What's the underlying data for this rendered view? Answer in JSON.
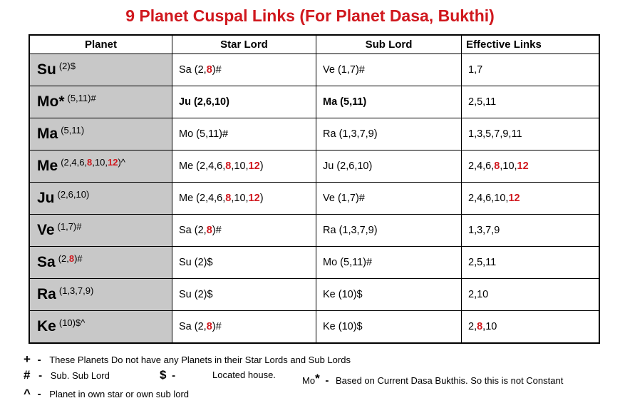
{
  "title": "9 Planet Cuspal Links (For Planet Dasa, Bukthi)",
  "headers": [
    "Planet",
    "Star Lord",
    "Sub Lord",
    "Effective Links"
  ],
  "rows": [
    {
      "planet": "Su",
      "planet_houses": "(2)$",
      "star_lord": [
        {
          "t": "Sa (2,"
        },
        {
          "t": "8",
          "c": "r"
        },
        {
          "t": ")#"
        }
      ],
      "sub_lord": [
        {
          "t": "Ve (1,7)#"
        }
      ],
      "links": [
        {
          "t": "1,7"
        }
      ]
    },
    {
      "planet": "Mo*",
      "planet_houses": "(5,11)#",
      "star_lord": [
        {
          "t": "Ju (2,6,10)",
          "c": "bold"
        }
      ],
      "sub_lord": [
        {
          "t": "Ma (5,11)",
          "c": "bold"
        }
      ],
      "links": [
        {
          "t": "2,5,11"
        }
      ]
    },
    {
      "planet": "Ma",
      "planet_houses": "(5,11)",
      "star_lord": [
        {
          "t": "Mo (5,11)#"
        }
      ],
      "sub_lord": [
        {
          "t": "Ra (1,3,7,9)"
        }
      ],
      "links": [
        {
          "t": "1,3,5,7,9,11"
        }
      ]
    },
    {
      "planet": "Me",
      "planet_houses_parts": [
        {
          "t": "(2,4,6,"
        },
        {
          "t": "8",
          "c": "r"
        },
        {
          "t": ",10,"
        },
        {
          "t": "12",
          "c": "r"
        },
        {
          "t": ")^"
        }
      ],
      "star_lord": [
        {
          "t": "Me (2,4,6,"
        },
        {
          "t": "8",
          "c": "r"
        },
        {
          "t": ",10,"
        },
        {
          "t": "12",
          "c": "r"
        },
        {
          "t": ")"
        }
      ],
      "sub_lord": [
        {
          "t": "Ju (2,6,10)"
        }
      ],
      "links": [
        {
          "t": "2,4,6,"
        },
        {
          "t": "8",
          "c": "r"
        },
        {
          "t": ",10,"
        },
        {
          "t": "12",
          "c": "r"
        }
      ]
    },
    {
      "planet": "Ju",
      "planet_houses": "(2,6,10)",
      "star_lord": [
        {
          "t": "Me (2,4,6,"
        },
        {
          "t": "8",
          "c": "r"
        },
        {
          "t": ",10,"
        },
        {
          "t": "12",
          "c": "r"
        },
        {
          "t": ")"
        }
      ],
      "sub_lord": [
        {
          "t": "Ve (1,7)#"
        }
      ],
      "links": [
        {
          "t": "2,4,6,10,"
        },
        {
          "t": "12",
          "c": "r"
        }
      ]
    },
    {
      "planet": "Ve",
      "planet_houses": "(1,7)#",
      "star_lord": [
        {
          "t": "Sa (2,"
        },
        {
          "t": "8",
          "c": "r"
        },
        {
          "t": ")#"
        }
      ],
      "sub_lord": [
        {
          "t": "Ra (1,3,7,9)"
        }
      ],
      "links": [
        {
          "t": "1,3,7,9"
        }
      ]
    },
    {
      "planet": "Sa",
      "planet_houses_parts": [
        {
          "t": "(2,"
        },
        {
          "t": "8",
          "c": "r"
        },
        {
          "t": ")#"
        }
      ],
      "star_lord": [
        {
          "t": "Su (2)$"
        }
      ],
      "sub_lord": [
        {
          "t": "Mo (5,11)#"
        }
      ],
      "links": [
        {
          "t": "2,5,11"
        }
      ]
    },
    {
      "planet": "Ra",
      "planet_houses": "(1,3,7,9)",
      "star_lord": [
        {
          "t": "Su (2)$"
        }
      ],
      "sub_lord": [
        {
          "t": "Ke (10)$"
        }
      ],
      "links": [
        {
          "t": "2,10"
        }
      ]
    },
    {
      "planet": "Ke",
      "planet_houses": "(10)$^",
      "star_lord": [
        {
          "t": "Sa (2,"
        },
        {
          "t": "8",
          "c": "r"
        },
        {
          "t": ")#"
        }
      ],
      "sub_lord": [
        {
          "t": "Ke (10)$"
        }
      ],
      "links": [
        {
          "t": "2,"
        },
        {
          "t": "8",
          "c": "r"
        },
        {
          "t": ",10"
        }
      ]
    }
  ],
  "legend": {
    "plus_symbol": "+",
    "plus_text": "These Planets Do not have any Planets in their Star Lords and Sub Lords",
    "hash_symbol": "#",
    "hash_text": "Sub. Sub Lord",
    "dollar_symbol": "$",
    "dollar_text": "Located house.",
    "mo_label": "Mo",
    "mo_star": "*",
    "mo_text": "Based on Current Dasa Bukthis. So this is not Constant",
    "caret_symbol": "^",
    "caret_text": "Planet in own star or own sub lord",
    "dash": "-"
  },
  "colors": {
    "title": "#d0181e",
    "highlight": "#d0181e",
    "planet_cell_bg": "#c8c8c8"
  }
}
